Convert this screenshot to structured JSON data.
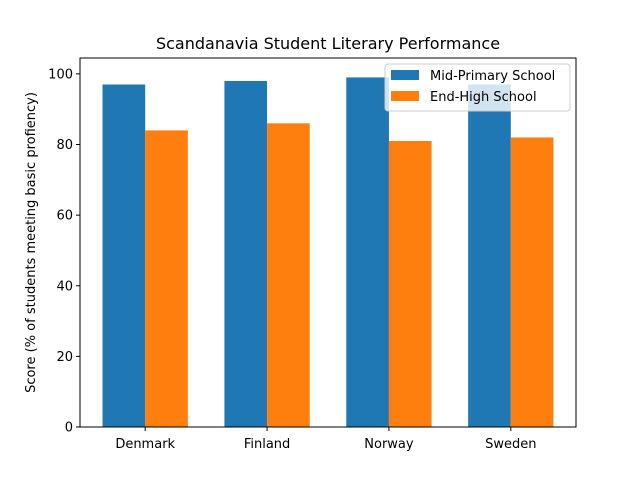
{
  "chart_data": {
    "type": "bar",
    "title": "Scandanavia Student Literary Performance",
    "xlabel": "",
    "ylabel": "Score (% of students meeting basic profiency)",
    "categories": [
      "Denmark",
      "Finland",
      "Norway",
      "Sweden"
    ],
    "series": [
      {
        "name": "Mid-Primary School",
        "values": [
          97,
          98,
          99,
          97
        ],
        "color": "#1f77b4"
      },
      {
        "name": "End-High School",
        "values": [
          84,
          86,
          81,
          82
        ],
        "color": "#ff7f0e"
      }
    ],
    "ylim": [
      0,
      104.5
    ],
    "yticks": [
      0,
      20,
      40,
      60,
      80,
      100
    ],
    "grid": false,
    "legend_position": "top-right"
  }
}
